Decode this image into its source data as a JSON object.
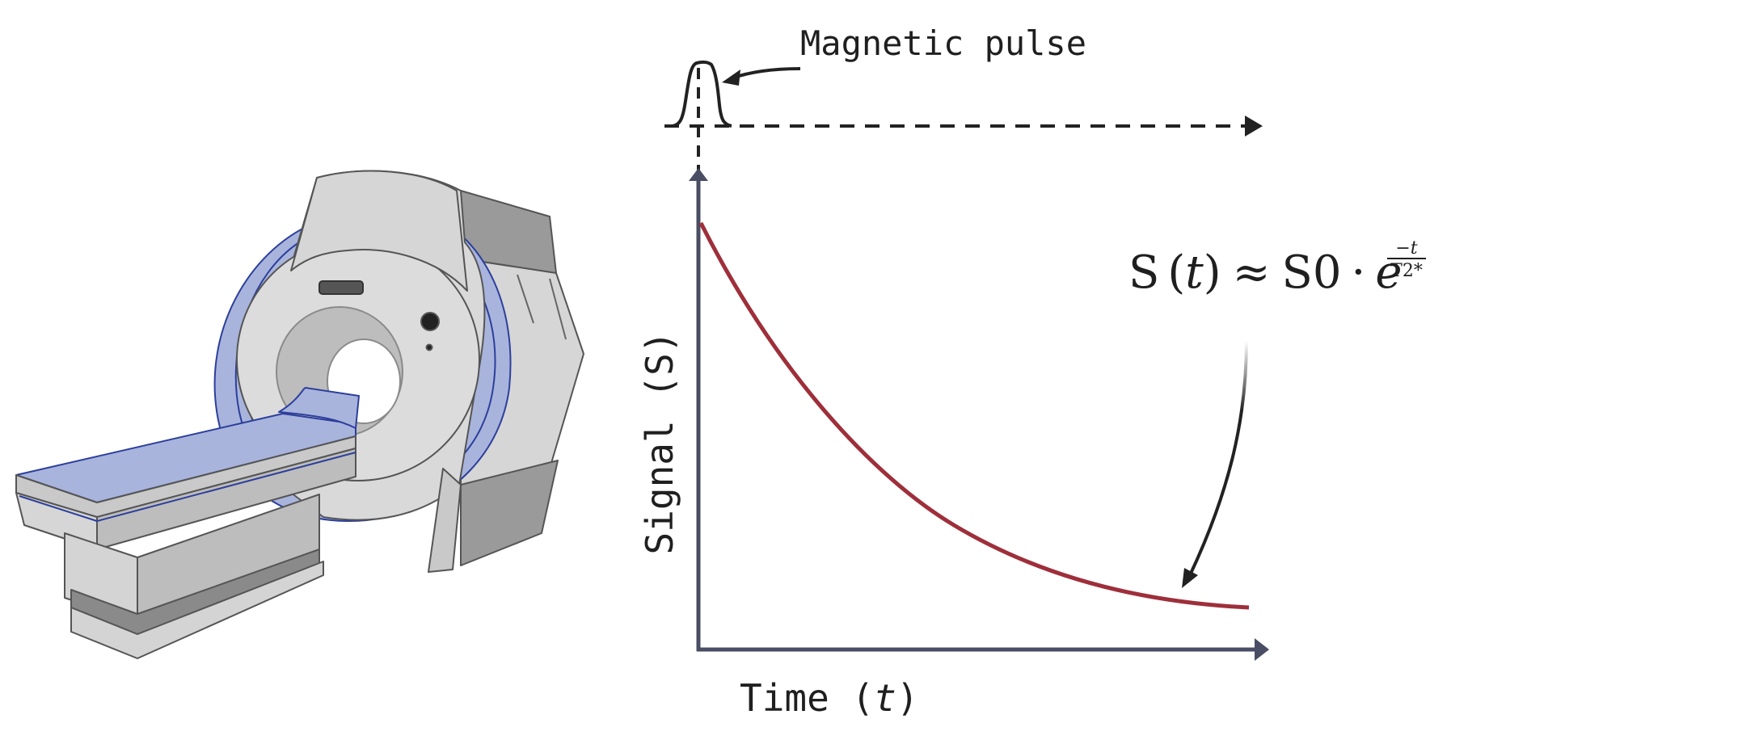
{
  "labels": {
    "pulse": "Magnetic pulse",
    "y_axis": "Signal (S)",
    "x_axis_prefix": "Time (",
    "x_axis_var": "t",
    "x_axis_suffix": ")"
  },
  "equation": {
    "lhs_s": "S",
    "lhs_open": "(",
    "lhs_t": "t",
    "lhs_close": ")",
    "approx": "≈",
    "s0": "S0",
    "dot": "·",
    "base": "e",
    "exp_numerator": "−t",
    "exp_denominator": "T2*"
  },
  "colors": {
    "curve": "#9e2f3a",
    "axis": "#4a4e64",
    "dashed": "#222222",
    "scanner_blue": "#a9b4dc",
    "scanner_blue_stroke": "#2c3f9c",
    "scanner_gray": "#d9d9d9",
    "scanner_dark": "#9a9a9a"
  },
  "icons": {
    "scanner": "mri-scanner-illustration"
  }
}
